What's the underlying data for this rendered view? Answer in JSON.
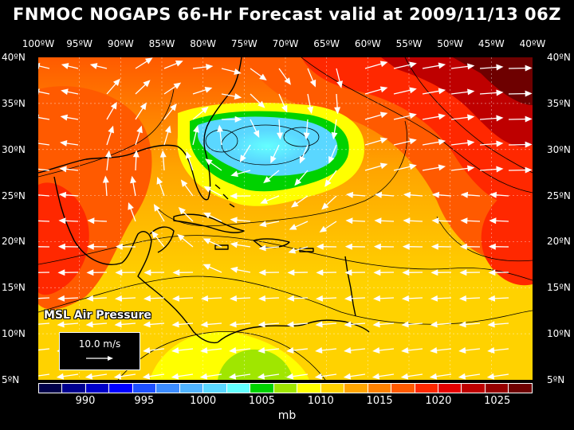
{
  "title": "FNMOC NOGAPS 66-Hr Forecast valid at 2009/11/13 06Z",
  "longitude_labels": [
    "100ºW",
    "95ºW",
    "90ºW",
    "85ºW",
    "80ºW",
    "75ºW",
    "70ºW",
    "65ºW",
    "60ºW",
    "55ºW",
    "50ºW",
    "45ºW",
    "40ºW"
  ],
  "latitude_labels": [
    "40ºN",
    "35ºN",
    "30ºN",
    "25ºN",
    "20ºN",
    "15ºN",
    "10ºN",
    "5ºN"
  ],
  "field_label": "MSL Air Pressure",
  "wind_reference": "10.0 m/s",
  "colorbar": {
    "colors": [
      "#00004a",
      "#000090",
      "#0000c8",
      "#0000ff",
      "#1e50ff",
      "#3c8cff",
      "#50b4ff",
      "#5ad7ff",
      "#64ffff",
      "#00d200",
      "#a0e600",
      "#ffff00",
      "#ffd200",
      "#ffa500",
      "#ff8200",
      "#ff5a00",
      "#ff2800",
      "#e60000",
      "#be0000",
      "#960000",
      "#6e0000"
    ],
    "labels": [
      "990",
      "995",
      "1000",
      "1005",
      "1010",
      "1015",
      "1020",
      "1025"
    ],
    "unit": "mb"
  }
}
